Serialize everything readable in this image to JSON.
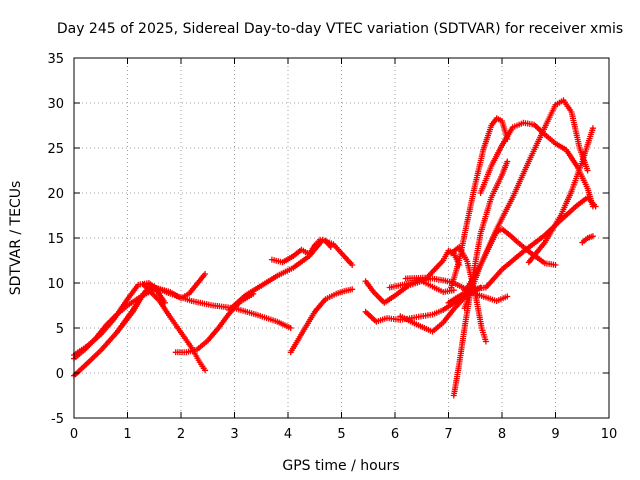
{
  "chart_data": {
    "type": "scatter",
    "title": "Day 245 of 2025, Sidereal Day-to-day VTEC variation (SDTVAR) for receiver xmis",
    "xlabel": "GPS time / hours",
    "ylabel": "SDTVAR / TECUs",
    "xlim": [
      0,
      10
    ],
    "ylim": [
      -5,
      35
    ],
    "xticks": [
      0,
      1,
      2,
      3,
      4,
      5,
      6,
      7,
      8,
      9,
      10
    ],
    "yticks": [
      -5,
      0,
      5,
      10,
      15,
      20,
      25,
      30,
      35
    ],
    "grid": true,
    "legend": "none",
    "marker": "plus",
    "color": "#ff0000",
    "series": [
      {
        "x": [
          0.0,
          0.2,
          0.5,
          0.8,
          1.1,
          1.3,
          1.4
        ],
        "y": [
          -0.3,
          0.8,
          2.5,
          4.5,
          7.0,
          8.8,
          9.5
        ]
      },
      {
        "x": [
          0.0,
          0.25,
          0.5,
          0.75,
          1.0,
          1.2,
          1.4,
          1.55
        ],
        "y": [
          2.0,
          3.0,
          4.3,
          6.0,
          8.2,
          9.8,
          10.0,
          9.3
        ]
      },
      {
        "x": [
          0.0,
          0.2,
          0.4,
          0.6,
          0.8,
          1.0,
          1.25,
          1.5
        ],
        "y": [
          1.6,
          2.6,
          3.8,
          5.3,
          6.5,
          7.5,
          8.5,
          9.3
        ]
      },
      {
        "x": [
          0.8,
          1.1,
          1.3,
          1.5,
          1.7
        ],
        "y": [
          4.5,
          6.8,
          8.8,
          9.6,
          7.8
        ]
      },
      {
        "x": [
          1.3,
          1.6,
          1.8,
          2.0,
          2.2,
          2.35,
          2.45
        ],
        "y": [
          9.8,
          8.0,
          6.2,
          4.5,
          2.8,
          1.2,
          0.3
        ]
      },
      {
        "x": [
          1.5,
          1.8,
          2.0,
          2.15,
          2.3,
          2.45
        ],
        "y": [
          9.5,
          9.0,
          8.3,
          8.8,
          9.9,
          11.0
        ]
      },
      {
        "x": [
          1.9,
          2.1,
          2.3,
          2.5,
          2.7,
          2.9,
          3.1,
          3.35
        ],
        "y": [
          2.3,
          2.3,
          2.6,
          3.6,
          5.0,
          6.6,
          7.9,
          8.8
        ]
      },
      {
        "x": [
          1.4,
          1.8,
          2.2,
          2.6,
          3.0,
          3.4,
          3.8,
          4.05
        ],
        "y": [
          9.8,
          8.8,
          8.0,
          7.5,
          7.2,
          6.5,
          5.7,
          5.0
        ]
      },
      {
        "x": [
          2.9,
          3.2,
          3.5,
          3.8,
          4.1,
          4.4,
          4.65,
          4.85,
          5.0,
          5.2
        ],
        "y": [
          7.0,
          8.6,
          9.7,
          10.8,
          11.7,
          13.0,
          14.8,
          14.3,
          13.3,
          12.0
        ]
      },
      {
        "x": [
          3.7,
          3.9,
          4.1,
          4.25,
          4.4,
          4.5,
          4.6,
          4.7,
          4.8
        ],
        "y": [
          12.6,
          12.3,
          13.0,
          13.7,
          13.2,
          14.2,
          14.8,
          14.7,
          14.0
        ]
      },
      {
        "x": [
          4.05,
          4.2,
          4.35,
          4.5,
          4.7,
          4.9,
          5.05,
          5.2
        ],
        "y": [
          2.3,
          3.8,
          5.3,
          6.8,
          8.2,
          8.8,
          9.1,
          9.3
        ]
      },
      {
        "x": [
          5.45,
          5.6,
          5.8,
          6.0,
          6.25,
          6.5,
          6.7,
          6.9,
          7.1
        ],
        "y": [
          10.2,
          9.0,
          7.8,
          8.6,
          9.7,
          10.2,
          9.6,
          9.0,
          9.2
        ]
      },
      {
        "x": [
          5.45,
          5.65,
          5.85,
          6.1,
          6.4,
          6.7,
          6.9,
          7.1,
          7.3
        ],
        "y": [
          6.8,
          5.7,
          6.1,
          5.9,
          6.2,
          6.5,
          7.0,
          7.8,
          8.5
        ]
      },
      {
        "x": [
          6.1,
          6.4,
          6.7,
          6.9,
          7.1,
          7.3,
          7.6
        ],
        "y": [
          6.3,
          5.4,
          4.6,
          5.6,
          7.1,
          8.4,
          9.5
        ]
      },
      {
        "x": [
          5.9,
          6.3,
          6.7,
          6.9,
          7.1,
          7.5,
          7.9,
          8.1
        ],
        "y": [
          9.5,
          10.0,
          10.5,
          10.3,
          10.0,
          8.8,
          8.0,
          8.5
        ]
      },
      {
        "x": [
          6.2,
          6.6,
          6.9,
          7.0,
          7.1,
          7.2
        ],
        "y": [
          10.5,
          10.6,
          12.5,
          13.6,
          13.3,
          12.0
        ]
      },
      {
        "x": [
          7.0,
          7.3,
          7.6,
          7.9,
          8.0,
          8.15,
          8.3,
          8.5,
          8.8,
          9.0
        ],
        "y": [
          7.8,
          8.9,
          12.0,
          15.7,
          16.0,
          15.3,
          14.5,
          13.5,
          12.2,
          12.0
        ]
      },
      {
        "x": [
          7.05,
          7.2,
          7.35,
          7.5,
          7.65,
          7.8,
          7.9,
          8.0,
          8.1
        ],
        "y": [
          9.5,
          12.5,
          16.8,
          21.0,
          24.8,
          27.5,
          28.3,
          28.0,
          26.0
        ]
      },
      {
        "x": [
          7.05,
          7.2,
          7.35,
          7.5,
          7.62,
          7.7
        ],
        "y": [
          13.3,
          14.0,
          12.4,
          8.8,
          5.0,
          3.5
        ]
      },
      {
        "x": [
          7.1,
          7.2,
          7.3,
          7.45,
          7.6,
          7.8,
          8.0,
          8.1
        ],
        "y": [
          -2.5,
          1.0,
          5.0,
          10.5,
          15.5,
          19.5,
          22.0,
          23.5
        ]
      },
      {
        "x": [
          7.6,
          7.8,
          8.0,
          8.2,
          8.4,
          8.6,
          8.8,
          9.0,
          9.2,
          9.4,
          9.6,
          9.7
        ],
        "y": [
          20.0,
          23.0,
          25.3,
          27.3,
          27.8,
          27.6,
          26.5,
          25.5,
          24.8,
          23.0,
          20.5,
          18.5
        ]
      },
      {
        "x": [
          7.3,
          7.6,
          7.9,
          8.2,
          8.5,
          8.8,
          9.0,
          9.15,
          9.3,
          9.45,
          9.6
        ],
        "y": [
          7.2,
          12.0,
          16.0,
          19.5,
          23.5,
          27.3,
          29.8,
          30.3,
          29.0,
          25.0,
          22.5
        ]
      },
      {
        "x": [
          7.3,
          7.7,
          8.0,
          8.4,
          8.8,
          9.1,
          9.4,
          9.6,
          9.75
        ],
        "y": [
          9.2,
          9.5,
          11.5,
          13.5,
          15.3,
          17.0,
          18.6,
          19.5,
          18.5
        ]
      },
      {
        "x": [
          8.5,
          8.8,
          9.1,
          9.3,
          9.5,
          9.7
        ],
        "y": [
          12.3,
          14.5,
          17.5,
          20.2,
          23.5,
          27.2
        ]
      },
      {
        "x": [
          9.5,
          9.6,
          9.7
        ],
        "y": [
          14.5,
          15.0,
          15.2
        ]
      }
    ]
  }
}
